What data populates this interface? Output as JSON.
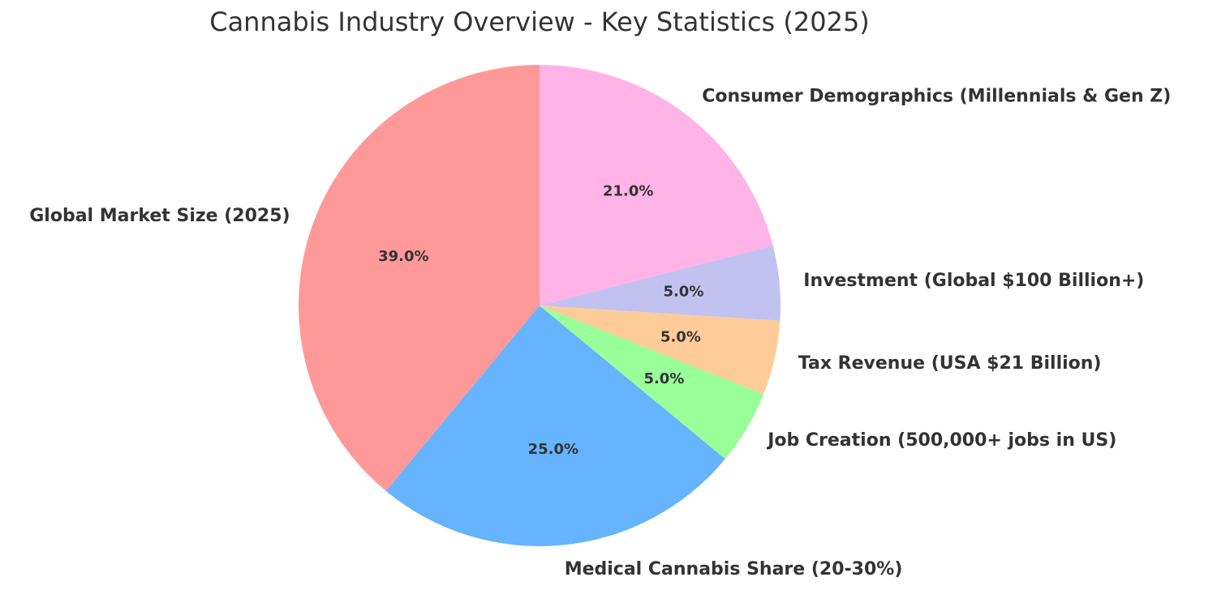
{
  "chart_data": {
    "type": "pie",
    "title": "Cannabis Industry Overview - Key Statistics (2025)",
    "start_angle_deg": 90,
    "direction": "counterclockwise",
    "slices": [
      {
        "label": "Global Market Size (2025)",
        "value": 39.0,
        "pct_label": "39.0%",
        "color": "#ff9999"
      },
      {
        "label": "Medical Cannabis Share (20-30%)",
        "value": 25.0,
        "pct_label": "25.0%",
        "color": "#66b3ff"
      },
      {
        "label": "Job Creation (500,000+ jobs in US)",
        "value": 5.0,
        "pct_label": "5.0%",
        "color": "#99ff99"
      },
      {
        "label": "Tax Revenue (USA $21 Billion)",
        "value": 5.0,
        "pct_label": "5.0%",
        "color": "#ffcc99"
      },
      {
        "label": "Investment (Global $100 Billion+)",
        "value": 5.0,
        "pct_label": "5.0%",
        "color": "#c2c2f0"
      },
      {
        "label": "Consumer Demographics (Millennials & Gen Z)",
        "value": 21.0,
        "pct_label": "21.0%",
        "color": "#ffb3e6"
      }
    ]
  }
}
